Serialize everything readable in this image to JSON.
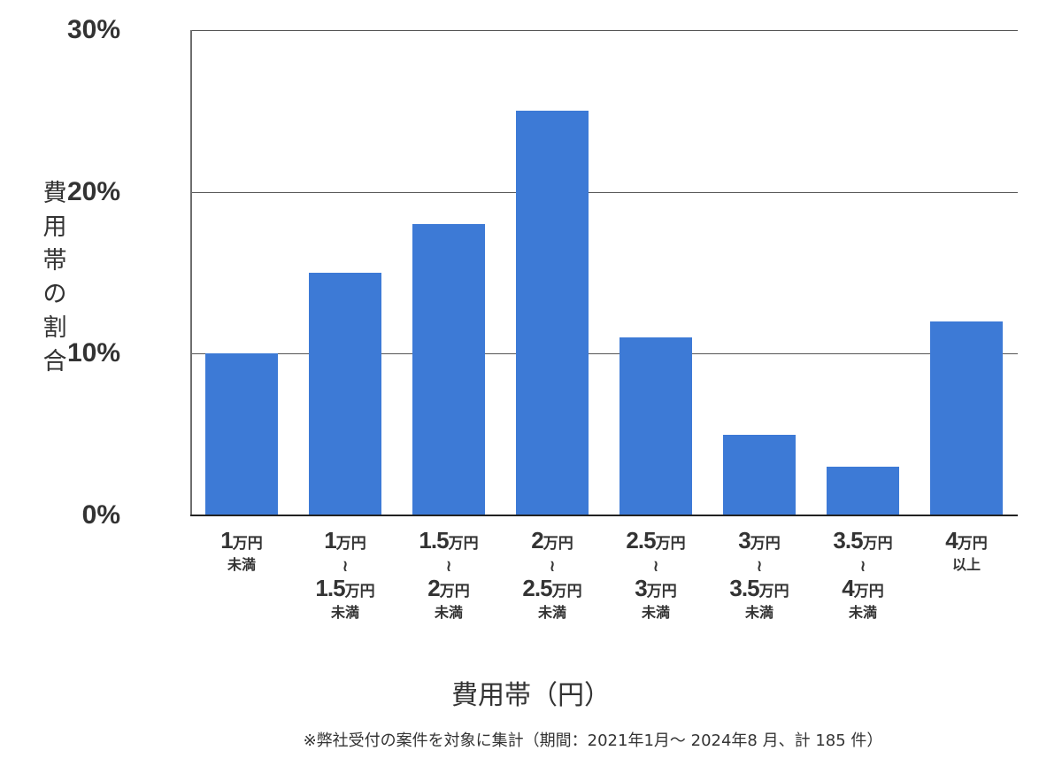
{
  "chart_data": {
    "type": "bar",
    "title": "",
    "xlabel": "費用帯（円）",
    "ylabel": "費用帯の割合",
    "ylim": [
      0,
      30
    ],
    "yticks": [
      "0%",
      "10%",
      "20%",
      "30%"
    ],
    "grid": true,
    "categories": [
      "1万円未満",
      "1万円〜1.5万円未満",
      "1.5万円〜2万円未満",
      "2万円〜2.5万円未満",
      "2.5万円〜3万円未満",
      "3万円〜3.5万円未満",
      "3.5万円〜4万円未満",
      "4万円以上"
    ],
    "values": [
      10,
      15,
      18,
      25,
      11,
      5,
      3,
      12
    ],
    "unit": "%",
    "bar_color": "#3d7ad6",
    "note": "※弊社受付の案件を対象に集計（期間：2021年1月〜 2024年8 月、計 185 件）"
  },
  "axis": {
    "y_title_chars": [
      "費",
      "用",
      "帯",
      "の",
      "割",
      "合"
    ],
    "y_ticks": [
      {
        "label": "30%",
        "value": 30
      },
      {
        "label": "20%",
        "value": 20
      },
      {
        "label": "10%",
        "value": 10
      },
      {
        "label": "0%",
        "value": 0
      }
    ],
    "x_title": "費用帯（円）"
  },
  "x_labels": [
    {
      "from_num": "1",
      "from_unit": "万円",
      "sep": "",
      "to_num": "",
      "to_unit": "",
      "suffix": "未満"
    },
    {
      "from_num": "1",
      "from_unit": "万円",
      "sep": "〜",
      "to_num": "1.5",
      "to_unit": "万円",
      "suffix": "未満"
    },
    {
      "from_num": "1.5",
      "from_unit": "万円",
      "sep": "〜",
      "to_num": "2",
      "to_unit": "万円",
      "suffix": "未満"
    },
    {
      "from_num": "2",
      "from_unit": "万円",
      "sep": "〜",
      "to_num": "2.5",
      "to_unit": "万円",
      "suffix": "未満"
    },
    {
      "from_num": "2.5",
      "from_unit": "万円",
      "sep": "〜",
      "to_num": "3",
      "to_unit": "万円",
      "suffix": "未満"
    },
    {
      "from_num": "3",
      "from_unit": "万円",
      "sep": "〜",
      "to_num": "3.5",
      "to_unit": "万円",
      "suffix": "未満"
    },
    {
      "from_num": "3.5",
      "from_unit": "万円",
      "sep": "〜",
      "to_num": "4",
      "to_unit": "万円",
      "suffix": "未満"
    },
    {
      "from_num": "4",
      "from_unit": "万円",
      "sep": "",
      "to_num": "",
      "to_unit": "",
      "suffix": "以上"
    }
  ],
  "footnote": "※弊社受付の案件を対象に集計（期間：2021年1月〜 2024年8 月、計 185 件）"
}
